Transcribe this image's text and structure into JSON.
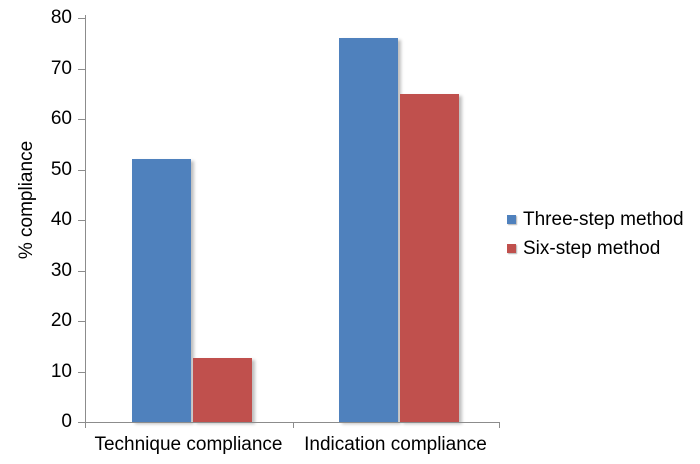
{
  "chart_data": {
    "type": "bar",
    "title": "",
    "xlabel": "",
    "ylabel": "% compliance",
    "categories": [
      "Technique compliance",
      "Indication compliance"
    ],
    "series": [
      {
        "name": "Three-step method",
        "color": "#4F81BD",
        "values": [
          52,
          76
        ]
      },
      {
        "name": "Six-step method",
        "color": "#C0504D",
        "values": [
          12.6,
          65
        ]
      }
    ],
    "ylim": [
      0,
      80
    ],
    "yticks": [
      0,
      10,
      20,
      30,
      40,
      50,
      60,
      70,
      80
    ],
    "grid": false,
    "legend_position": "right"
  }
}
